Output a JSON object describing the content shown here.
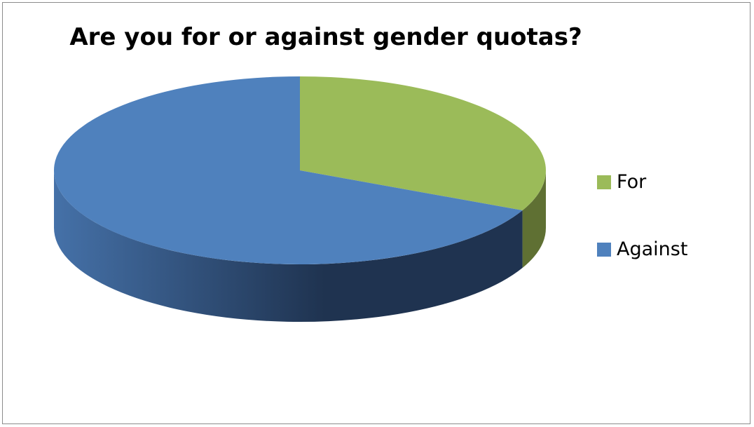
{
  "chart_data": {
    "type": "pie",
    "title": "Are you for or against gender quotas?",
    "style": "3d",
    "legend": "right",
    "series": [
      {
        "name": "",
        "values": [
          {
            "label": "For",
            "value": 32,
            "color": "#9bbb59",
            "side_dark": "#5f7033",
            "side_light": "#8fab4f"
          },
          {
            "label": "Against",
            "value": 68,
            "color": "#4f81bd",
            "side_dark": "#1f3350",
            "side_light": "#4571a8"
          }
        ]
      }
    ]
  }
}
